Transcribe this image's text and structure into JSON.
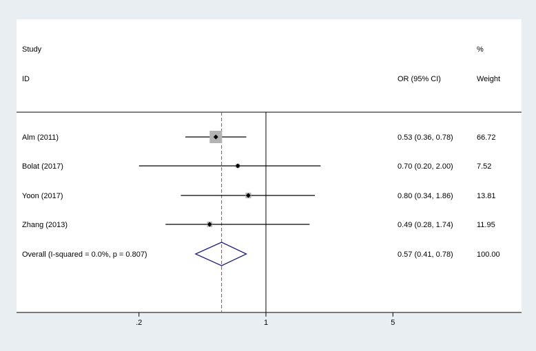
{
  "chart_data": {
    "type": "forest",
    "header": {
      "study_line1": "Study",
      "study_line2": "ID",
      "or_label": "OR (95% CI)",
      "weight_line1": "%",
      "weight_line2": "Weight"
    },
    "studies": [
      {
        "label": "Alm (2011)",
        "or": 0.53,
        "lo": 0.36,
        "hi": 0.78,
        "ci_text": "0.53 (0.36, 0.78)",
        "weight": 66.72,
        "weight_text": "66.72"
      },
      {
        "label": "Bolat (2017)",
        "or": 0.7,
        "lo": 0.2,
        "hi": 2.0,
        "ci_text": "0.70 (0.20, 2.00)",
        "weight": 7.52,
        "weight_text": "7.52"
      },
      {
        "label": "Yoon (2017)",
        "or": 0.8,
        "lo": 0.34,
        "hi": 1.86,
        "ci_text": "0.80 (0.34, 1.86)",
        "weight": 13.81,
        "weight_text": "13.81"
      },
      {
        "label": "Zhang (2013)",
        "or": 0.49,
        "lo": 0.28,
        "hi": 1.74,
        "ci_text": "0.49 (0.28, 1.74)",
        "weight": 11.95,
        "weight_text": "11.95"
      }
    ],
    "overall": {
      "label": "Overall  (I-squared = 0.0%, p = 0.807)",
      "or": 0.57,
      "lo": 0.41,
      "hi": 0.78,
      "ci_text": "0.57 (0.41, 0.78)",
      "weight_text": "100.00"
    },
    "x_scale": "log",
    "x_ticks": [
      {
        "value": 0.2,
        "label": ".2"
      },
      {
        "value": 1,
        "label": "1"
      },
      {
        "value": 5,
        "label": "5"
      }
    ],
    "null_line_value": 1,
    "colors": {
      "background": "#e8eef2",
      "panel": "#ffffff",
      "marker": "#000000",
      "weight_box": "#b3b3b3",
      "diamond": "#1f1f7a",
      "ref_line": "#c0392b"
    }
  }
}
